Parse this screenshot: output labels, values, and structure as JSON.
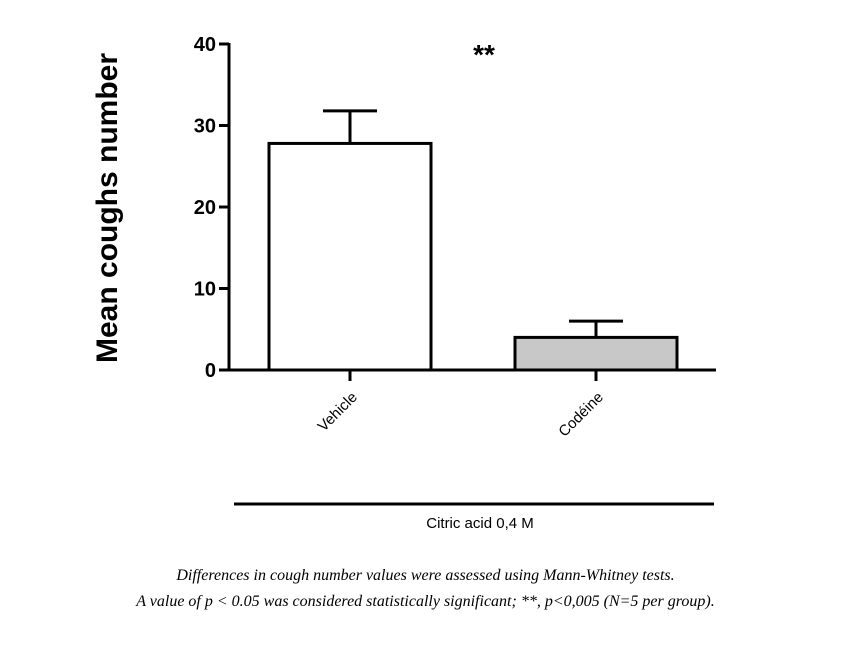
{
  "chart_data": {
    "type": "bar",
    "categories": [
      "Vehicle",
      "Codéine"
    ],
    "values": [
      27.8,
      4.0
    ],
    "errors": [
      4.0,
      2.0
    ],
    "bar_colors": [
      "#ffffff",
      "#c8c8c8"
    ],
    "ylabel": "Mean coughs number",
    "ylim": [
      0,
      40
    ],
    "yticks": [
      "0",
      "10",
      "20",
      "30",
      "40"
    ],
    "significance": "**",
    "group_label": "Citric acid 0,4 M",
    "grid": false
  },
  "caption": {
    "line1": "Differences in cough number values were assessed using Mann-Whitney tests.",
    "line2": "A value of  p < 0.05 was considered statistically significant; **, p<0,005 (N=5 per group)."
  }
}
